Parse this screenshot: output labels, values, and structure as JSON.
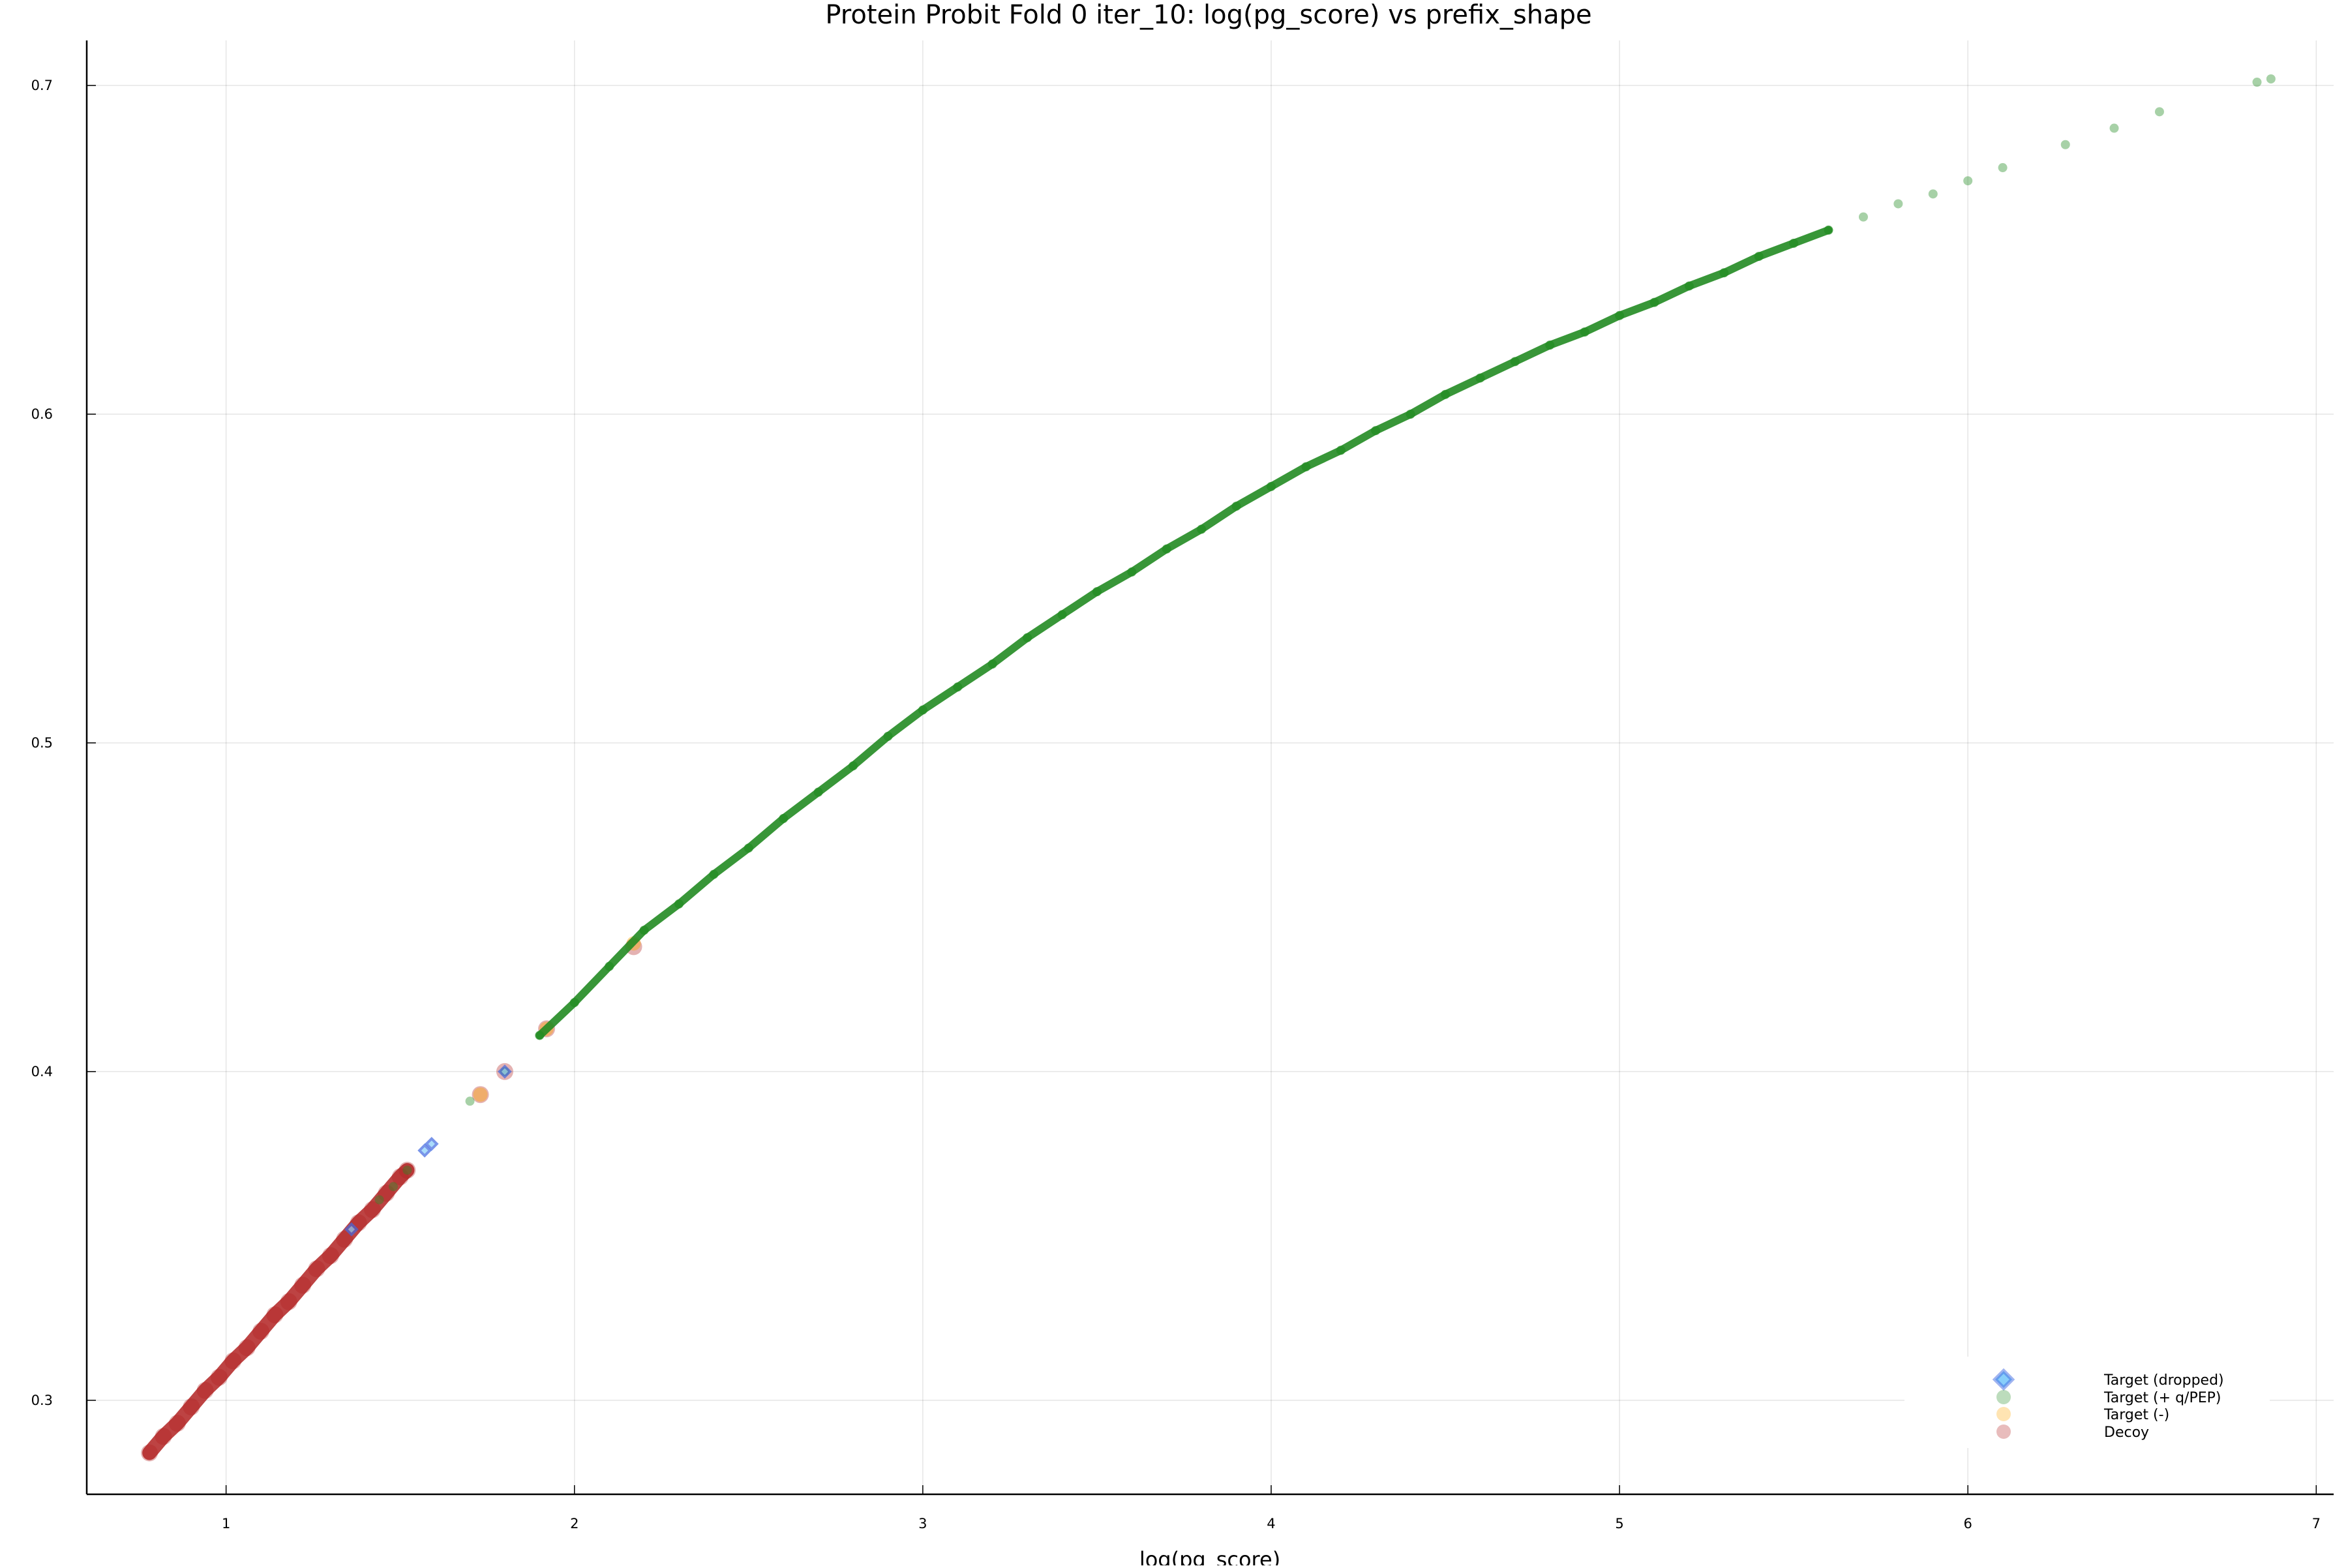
{
  "chart_data": {
    "type": "scatter",
    "title": "Protein Probit Fold 0 iter_10: log(pg_score) vs prefix_shape",
    "xlabel": "log(pg_score)",
    "ylabel": "",
    "xlim": [
      0.6,
      7.05
    ],
    "ylim": [
      0.2714,
      0.7137
    ],
    "x_ticks": [
      1,
      2,
      3,
      4,
      5,
      6,
      7
    ],
    "y_ticks": [
      0.3,
      0.4,
      0.5,
      0.6,
      0.7
    ],
    "x_tick_labels": [
      "1",
      "2",
      "3",
      "4",
      "5",
      "6",
      "7"
    ],
    "y_tick_labels": [
      "0.3",
      "0.4",
      "0.5",
      "0.6",
      "0.7"
    ],
    "grid": true,
    "legend_position": "bottom-right",
    "series": [
      {
        "name": "Target (dropped)",
        "marker": "diamond",
        "color": "#4169e1",
        "x": [
          1.36,
          1.57,
          1.59,
          1.8
        ],
        "y": [
          0.352,
          0.376,
          0.378,
          0.4
        ]
      },
      {
        "name": "Target (+ q/PEP)",
        "marker": "circle",
        "color": "#228b22",
        "x": [
          1.44,
          1.48,
          1.52,
          1.7,
          1.8,
          1.9,
          2.0,
          2.1,
          2.2,
          2.3,
          2.4,
          2.5,
          2.6,
          2.7,
          2.8,
          2.9,
          3.0,
          3.1,
          3.2,
          3.3,
          3.4,
          3.5,
          3.6,
          3.7,
          3.8,
          3.9,
          4.0,
          4.1,
          4.2,
          4.3,
          4.4,
          4.5,
          4.6,
          4.7,
          4.8,
          4.9,
          5.0,
          5.1,
          5.2,
          5.3,
          5.4,
          5.5,
          5.6,
          5.7,
          5.8,
          5.9,
          6.0,
          6.1,
          6.28,
          6.42,
          6.55,
          6.83,
          6.87
        ],
        "y": [
          0.361,
          0.365,
          0.37,
          0.391,
          0.4,
          0.411,
          0.421,
          0.432,
          0.443,
          0.451,
          0.46,
          0.468,
          0.477,
          0.485,
          0.493,
          0.502,
          0.51,
          0.517,
          0.524,
          0.532,
          0.539,
          0.546,
          0.552,
          0.559,
          0.565,
          0.572,
          0.578,
          0.584,
          0.589,
          0.595,
          0.6,
          0.606,
          0.611,
          0.616,
          0.621,
          0.625,
          0.63,
          0.634,
          0.639,
          0.643,
          0.648,
          0.652,
          0.656,
          0.66,
          0.664,
          0.667,
          0.671,
          0.675,
          0.682,
          0.687,
          0.692,
          0.701,
          0.702
        ]
      },
      {
        "name": "Target (-)",
        "marker": "circle",
        "color": "#ffa500",
        "x": [
          1.73,
          1.92,
          2.17
        ],
        "y": [
          0.393,
          0.413,
          0.439
        ]
      },
      {
        "name": "Decoy",
        "marker": "circle",
        "color": "#b22222",
        "x": [
          0.78,
          0.82,
          0.86,
          0.9,
          0.94,
          0.98,
          1.02,
          1.06,
          1.1,
          1.14,
          1.18,
          1.22,
          1.26,
          1.3,
          1.34,
          1.38,
          1.42,
          1.46,
          1.5,
          1.52,
          1.73,
          1.8,
          1.92,
          2.17
        ],
        "y": [
          0.284,
          0.289,
          0.293,
          0.298,
          0.303,
          0.307,
          0.312,
          0.316,
          0.321,
          0.326,
          0.33,
          0.335,
          0.34,
          0.344,
          0.349,
          0.354,
          0.358,
          0.363,
          0.368,
          0.37,
          0.393,
          0.4,
          0.413,
          0.438
        ]
      }
    ]
  }
}
